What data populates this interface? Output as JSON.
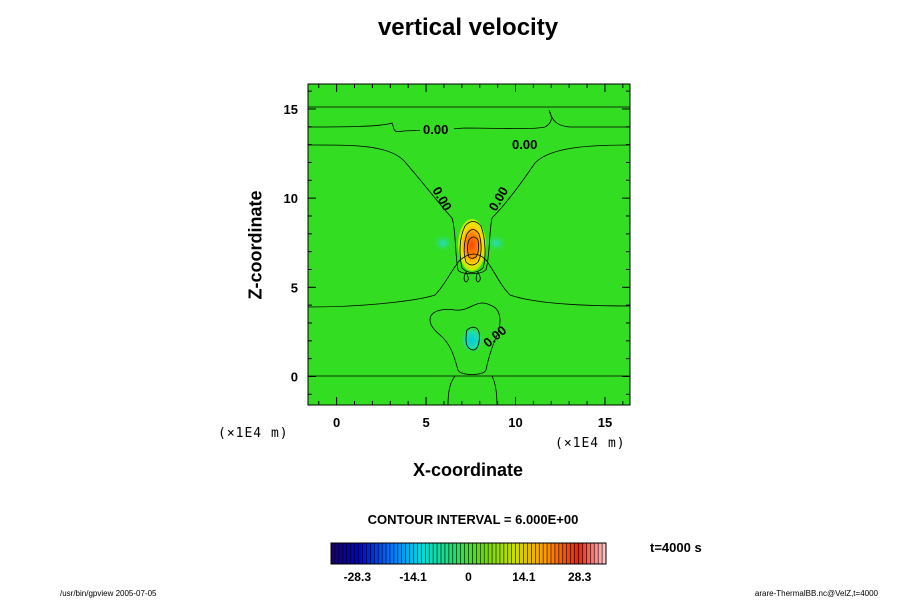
{
  "chart_data": {
    "type": "heatmap",
    "title": "vertical velocity",
    "xlabel": "X-coordinate",
    "ylabel": "Z-coordinate",
    "x_unit": "(×1E4 m)",
    "y_unit": "(×1E4 m)",
    "xlim": [
      -1.6,
      16.4
    ],
    "ylim": [
      -1.6,
      16.4
    ],
    "x_ticks": [
      0,
      5,
      10,
      15
    ],
    "y_ticks": [
      0,
      5,
      10,
      15
    ],
    "contour_interval_text": "CONTOUR INTERVAL = 6.000E+00",
    "time_text": "t=4000 s",
    "contour_labels": [
      {
        "text": "0.00",
        "x": 5.5,
        "z": 13.8
      },
      {
        "text": "0.00",
        "x": 10.5,
        "z": 12.8
      },
      {
        "text": "0.00",
        "x": 5.6,
        "z": 9.8
      },
      {
        "text": "0.00",
        "x": 9.7,
        "z": 9.9
      },
      {
        "text": "0.00",
        "x": 9.0,
        "z": 2.2
      }
    ],
    "features": [
      {
        "name": "updraft maximum",
        "x": 7.5,
        "z": 7.5,
        "value": 28.3
      },
      {
        "name": "downdraft minimum",
        "x": 7.5,
        "z": 2.0,
        "value": -9
      }
    ],
    "colorbar": {
      "min": -35,
      "max": 35,
      "tick_labels": [
        "-28.3",
        "-14.1",
        "0",
        "14.1",
        "28.3"
      ],
      "tick_values": [
        -28.3,
        -14.1,
        0,
        14.1,
        28.3
      ]
    }
  },
  "footer": {
    "left": "/usr/bin/gpview 2005-07-05",
    "right": "arare-ThermalBB.nc@VelZ,t=4000"
  },
  "colors": {
    "background_field": "#33dd22"
  }
}
